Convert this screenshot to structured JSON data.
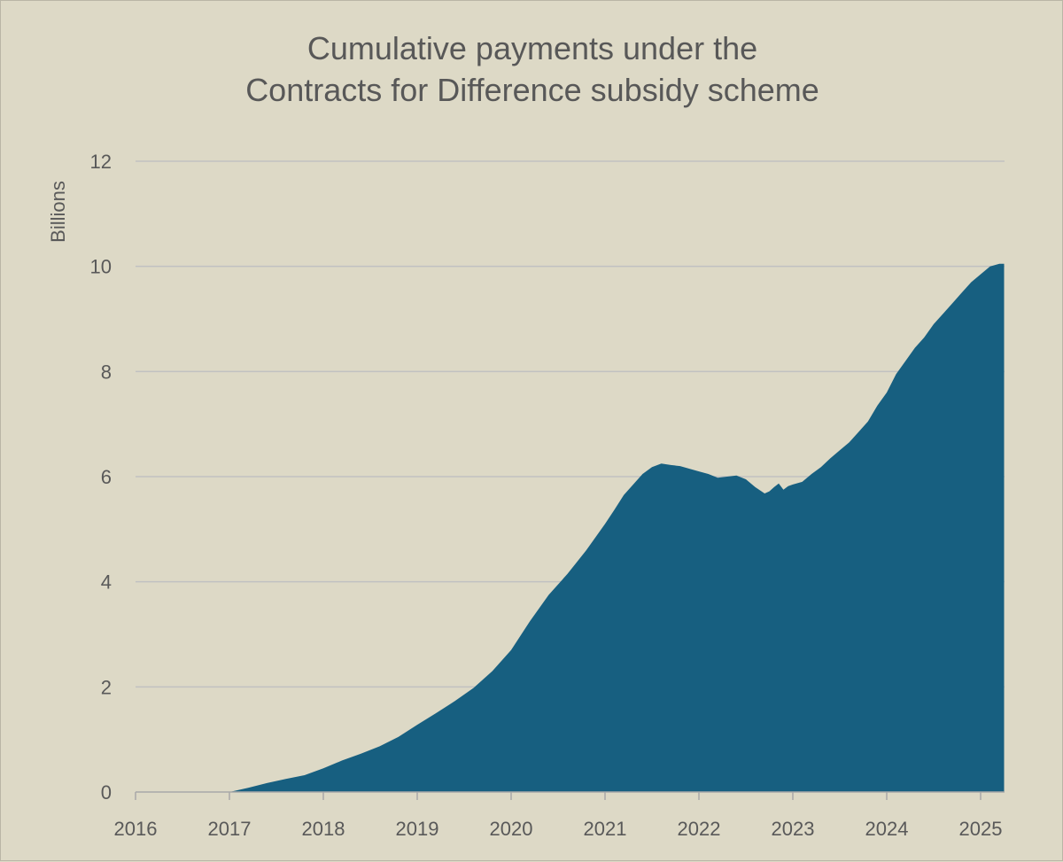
{
  "chart_data": {
    "type": "area",
    "title_lines": [
      "Cumulative payments under the",
      "Contracts for Difference subsidy scheme"
    ],
    "xlabel": "",
    "ylabel": "Billions",
    "xlim": [
      2016,
      2025.3
    ],
    "ylim": [
      0,
      12
    ],
    "x_ticks": [
      2016,
      2017,
      2018,
      2019,
      2020,
      2021,
      2022,
      2023,
      2024,
      2025
    ],
    "y_ticks": [
      0,
      2,
      4,
      6,
      8,
      10,
      12
    ],
    "grid": "horizontal",
    "legend": "none",
    "series": [
      {
        "x": [
          2017.0,
          2017.2,
          2017.4,
          2017.6,
          2017.8,
          2018.0,
          2018.2,
          2018.4,
          2018.6,
          2018.8,
          2019.0,
          2019.2,
          2019.4,
          2019.6,
          2019.8,
          2020.0,
          2020.2,
          2020.4,
          2020.6,
          2020.8,
          2021.0,
          2021.1,
          2021.2,
          2021.3,
          2021.4,
          2021.5,
          2021.6,
          2021.7,
          2021.8,
          2021.9,
          2022.0,
          2022.1,
          2022.2,
          2022.3,
          2022.4,
          2022.5,
          2022.6,
          2022.7,
          2022.75,
          2022.8,
          2022.85,
          2022.9,
          2022.95,
          2023.0,
          2023.1,
          2023.2,
          2023.3,
          2023.4,
          2023.5,
          2023.6,
          2023.7,
          2023.8,
          2023.9,
          2024.0,
          2024.1,
          2024.2,
          2024.3,
          2024.4,
          2024.5,
          2024.6,
          2024.7,
          2024.8,
          2024.9,
          2025.0,
          2025.1,
          2025.2,
          2025.25
        ],
        "values": [
          0.0,
          0.08,
          0.17,
          0.25,
          0.32,
          0.45,
          0.6,
          0.73,
          0.87,
          1.05,
          1.28,
          1.5,
          1.73,
          1.98,
          2.3,
          2.7,
          3.25,
          3.75,
          4.15,
          4.6,
          5.1,
          5.37,
          5.65,
          5.85,
          6.05,
          6.18,
          6.25,
          6.22,
          6.2,
          6.15,
          6.1,
          6.05,
          5.98,
          6.0,
          6.02,
          5.95,
          5.8,
          5.68,
          5.72,
          5.8,
          5.87,
          5.75,
          5.82,
          5.85,
          5.9,
          6.05,
          6.18,
          6.35,
          6.5,
          6.65,
          6.85,
          7.05,
          7.35,
          7.6,
          7.95,
          8.2,
          8.45,
          8.65,
          8.9,
          9.1,
          9.3,
          9.5,
          9.7,
          9.85,
          10.0,
          10.05,
          10.05
        ],
        "color": "#175f80"
      }
    ]
  },
  "colors": {
    "background": "#ddd9c6",
    "gridline": "#c1c1c1",
    "text": "#595959",
    "area": "#175f80"
  }
}
